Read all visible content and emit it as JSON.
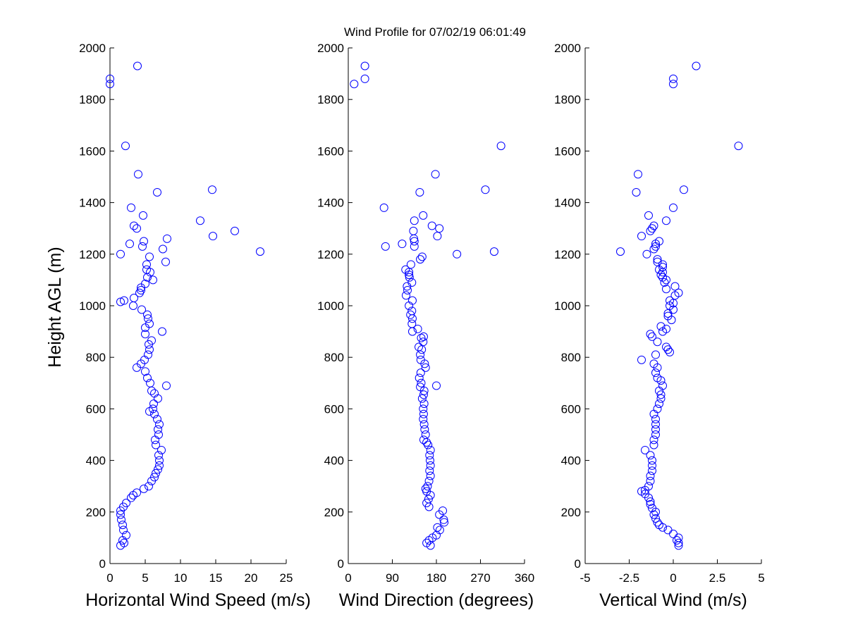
{
  "chart_data": {
    "type": "scatter",
    "title": "Wind Profile for  07/02/19 06:01:49",
    "ylabel": "Height AGL (m)",
    "ylim": [
      0,
      2000
    ],
    "yticks": [
      "0",
      "200",
      "400",
      "600",
      "800",
      "1000",
      "1200",
      "1400",
      "1600",
      "1800",
      "2000"
    ],
    "marker": "open-circle",
    "marker_color": "#0000ff",
    "panels": [
      {
        "name": "speed",
        "xlabel": "Horizontal Wind Speed (m/s)",
        "xlim": [
          0,
          25
        ],
        "xticks": [
          "0",
          "5",
          "10",
          "15",
          "20",
          "25"
        ],
        "points": [
          [
            1.5,
            70
          ],
          [
            2.0,
            80
          ],
          [
            1.8,
            90
          ],
          [
            2.3,
            110
          ],
          [
            1.9,
            130
          ],
          [
            1.8,
            150
          ],
          [
            1.6,
            170
          ],
          [
            1.5,
            190
          ],
          [
            1.5,
            205
          ],
          [
            1.9,
            220
          ],
          [
            2.3,
            235
          ],
          [
            3.0,
            255
          ],
          [
            3.3,
            265
          ],
          [
            3.8,
            275
          ],
          [
            4.8,
            290
          ],
          [
            5.5,
            300
          ],
          [
            5.9,
            320
          ],
          [
            6.3,
            335
          ],
          [
            6.5,
            350
          ],
          [
            6.8,
            365
          ],
          [
            7.0,
            380
          ],
          [
            7.0,
            400
          ],
          [
            6.9,
            420
          ],
          [
            7.3,
            440
          ],
          [
            6.5,
            460
          ],
          [
            6.4,
            480
          ],
          [
            6.9,
            500
          ],
          [
            6.8,
            520
          ],
          [
            7.0,
            540
          ],
          [
            6.7,
            560
          ],
          [
            6.3,
            580
          ],
          [
            5.6,
            590
          ],
          [
            6.1,
            600
          ],
          [
            6.2,
            620
          ],
          [
            6.8,
            640
          ],
          [
            6.3,
            660
          ],
          [
            5.9,
            670
          ],
          [
            8.0,
            690
          ],
          [
            5.7,
            700
          ],
          [
            5.3,
            720
          ],
          [
            5.0,
            745
          ],
          [
            3.8,
            760
          ],
          [
            4.4,
            775
          ],
          [
            4.9,
            790
          ],
          [
            5.4,
            810
          ],
          [
            5.6,
            830
          ],
          [
            5.5,
            850
          ],
          [
            5.9,
            865
          ],
          [
            5.0,
            890
          ],
          [
            7.4,
            900
          ],
          [
            5.0,
            915
          ],
          [
            5.6,
            930
          ],
          [
            5.4,
            950
          ],
          [
            5.3,
            965
          ],
          [
            4.5,
            985
          ],
          [
            3.3,
            1000
          ],
          [
            1.5,
            1015
          ],
          [
            2.0,
            1020
          ],
          [
            3.4,
            1030
          ],
          [
            4.2,
            1050
          ],
          [
            4.4,
            1060
          ],
          [
            4.4,
            1070
          ],
          [
            5.0,
            1085
          ],
          [
            6.1,
            1100
          ],
          [
            5.3,
            1110
          ],
          [
            5.7,
            1130
          ],
          [
            5.2,
            1140
          ],
          [
            5.2,
            1160
          ],
          [
            7.9,
            1170
          ],
          [
            5.6,
            1190
          ],
          [
            1.5,
            1200
          ],
          [
            7.5,
            1220
          ],
          [
            4.6,
            1230
          ],
          [
            2.8,
            1240
          ],
          [
            4.8,
            1250
          ],
          [
            8.1,
            1260
          ],
          [
            17.7,
            1290
          ],
          [
            3.8,
            1300
          ],
          [
            3.4,
            1310
          ],
          [
            12.8,
            1330
          ],
          [
            4.7,
            1350
          ],
          [
            3.0,
            1380
          ],
          [
            6.7,
            1440
          ],
          [
            14.5,
            1450
          ],
          [
            4.0,
            1510
          ],
          [
            2.2,
            1620
          ],
          [
            0.0,
            1860
          ],
          [
            0.0,
            1880
          ],
          [
            3.9,
            1930
          ],
          [
            14.6,
            1270
          ],
          [
            21.3,
            1210
          ]
        ]
      },
      {
        "name": "direction",
        "xlabel": "Wind Direction (degrees)",
        "xlim": [
          0,
          360
        ],
        "xticks": [
          "0",
          "90",
          "180",
          "270",
          "360"
        ],
        "points": [
          [
            168,
            70
          ],
          [
            160,
            80
          ],
          [
            165,
            90
          ],
          [
            172,
            100
          ],
          [
            180,
            110
          ],
          [
            187,
            130
          ],
          [
            182,
            140
          ],
          [
            196,
            160
          ],
          [
            195,
            170
          ],
          [
            186,
            190
          ],
          [
            193,
            205
          ],
          [
            165,
            220
          ],
          [
            160,
            235
          ],
          [
            164,
            250
          ],
          [
            168,
            265
          ],
          [
            160,
            280
          ],
          [
            158,
            290
          ],
          [
            162,
            300
          ],
          [
            165,
            320
          ],
          [
            168,
            340
          ],
          [
            166,
            360
          ],
          [
            168,
            380
          ],
          [
            167,
            400
          ],
          [
            166,
            420
          ],
          [
            168,
            440
          ],
          [
            163,
            460
          ],
          [
            160,
            470
          ],
          [
            154,
            480
          ],
          [
            158,
            500
          ],
          [
            156,
            520
          ],
          [
            155,
            540
          ],
          [
            153,
            560
          ],
          [
            154,
            580
          ],
          [
            153,
            600
          ],
          [
            155,
            620
          ],
          [
            151,
            640
          ],
          [
            154,
            655
          ],
          [
            155,
            670
          ],
          [
            147,
            685
          ],
          [
            180,
            690
          ],
          [
            149,
            700
          ],
          [
            145,
            720
          ],
          [
            148,
            740
          ],
          [
            158,
            760
          ],
          [
            156,
            775
          ],
          [
            148,
            790
          ],
          [
            147,
            810
          ],
          [
            150,
            830
          ],
          [
            144,
            840
          ],
          [
            153,
            860
          ],
          [
            149,
            875
          ],
          [
            154,
            880
          ],
          [
            131,
            900
          ],
          [
            142,
            910
          ],
          [
            130,
            930
          ],
          [
            131,
            950
          ],
          [
            127,
            965
          ],
          [
            130,
            980
          ],
          [
            124,
            1000
          ],
          [
            131,
            1020
          ],
          [
            118,
            1040
          ],
          [
            121,
            1060
          ],
          [
            120,
            1075
          ],
          [
            130,
            1090
          ],
          [
            125,
            1110
          ],
          [
            124,
            1120
          ],
          [
            124,
            1130
          ],
          [
            117,
            1140
          ],
          [
            128,
            1160
          ],
          [
            147,
            1180
          ],
          [
            151,
            1190
          ],
          [
            222,
            1200
          ],
          [
            298,
            1210
          ],
          [
            135,
            1230
          ],
          [
            76,
            1230
          ],
          [
            110,
            1240
          ],
          [
            135,
            1250
          ],
          [
            134,
            1260
          ],
          [
            182,
            1270
          ],
          [
            133,
            1290
          ],
          [
            186,
            1300
          ],
          [
            171,
            1310
          ],
          [
            135,
            1330
          ],
          [
            153,
            1350
          ],
          [
            73,
            1380
          ],
          [
            146,
            1440
          ],
          [
            280,
            1450
          ],
          [
            178,
            1510
          ],
          [
            312,
            1620
          ],
          [
            12,
            1860
          ],
          [
            34,
            1880
          ],
          [
            34,
            1930
          ]
        ]
      },
      {
        "name": "vertical",
        "xlabel": "Vertical Wind (m/s)",
        "xlim": [
          -5,
          5
        ],
        "xticks": [
          "-5",
          "-2.5",
          "0",
          "2.5",
          "5"
        ],
        "points": [
          [
            0.3,
            70
          ],
          [
            0.3,
            80
          ],
          [
            0.2,
            90
          ],
          [
            0.3,
            100
          ],
          [
            0.0,
            115
          ],
          [
            -0.3,
            130
          ],
          [
            -0.6,
            140
          ],
          [
            -0.8,
            150
          ],
          [
            -0.9,
            160
          ],
          [
            -1.0,
            175
          ],
          [
            -1.1,
            190
          ],
          [
            -1.0,
            200
          ],
          [
            -1.2,
            215
          ],
          [
            -1.3,
            230
          ],
          [
            -1.3,
            240
          ],
          [
            -1.4,
            255
          ],
          [
            -1.6,
            270
          ],
          [
            -1.8,
            280
          ],
          [
            -1.6,
            285
          ],
          [
            -1.4,
            300
          ],
          [
            -1.3,
            320
          ],
          [
            -1.3,
            340
          ],
          [
            -1.2,
            360
          ],
          [
            -1.2,
            380
          ],
          [
            -1.2,
            400
          ],
          [
            -1.3,
            420
          ],
          [
            -1.6,
            440
          ],
          [
            -1.1,
            460
          ],
          [
            -1.1,
            480
          ],
          [
            -1.0,
            500
          ],
          [
            -1.0,
            520
          ],
          [
            -1.0,
            540
          ],
          [
            -1.0,
            560
          ],
          [
            -1.1,
            580
          ],
          [
            -0.9,
            600
          ],
          [
            -0.8,
            620
          ],
          [
            -0.7,
            640
          ],
          [
            -0.7,
            655
          ],
          [
            -0.8,
            670
          ],
          [
            -0.6,
            690
          ],
          [
            -0.7,
            710
          ],
          [
            -0.9,
            720
          ],
          [
            -1.0,
            740
          ],
          [
            -0.9,
            760
          ],
          [
            -1.1,
            775
          ],
          [
            -1.8,
            790
          ],
          [
            -1.0,
            810
          ],
          [
            -0.2,
            820
          ],
          [
            -0.3,
            830
          ],
          [
            -0.4,
            840
          ],
          [
            -0.9,
            860
          ],
          [
            -1.2,
            880
          ],
          [
            -1.3,
            890
          ],
          [
            -0.6,
            900
          ],
          [
            -0.4,
            910
          ],
          [
            -0.7,
            920
          ],
          [
            -0.1,
            945
          ],
          [
            -0.3,
            960
          ],
          [
            -0.3,
            970
          ],
          [
            0.0,
            985
          ],
          [
            -0.2,
            1000
          ],
          [
            0.0,
            1010
          ],
          [
            -0.2,
            1020
          ],
          [
            0.1,
            1040
          ],
          [
            0.3,
            1050
          ],
          [
            -0.4,
            1065
          ],
          [
            0.1,
            1075
          ],
          [
            -0.5,
            1090
          ],
          [
            -0.4,
            1100
          ],
          [
            -0.6,
            1110
          ],
          [
            -0.7,
            1120
          ],
          [
            -0.6,
            1130
          ],
          [
            -0.8,
            1140
          ],
          [
            -0.6,
            1150
          ],
          [
            -0.6,
            1160
          ],
          [
            -0.9,
            1170
          ],
          [
            -0.9,
            1180
          ],
          [
            -1.5,
            1200
          ],
          [
            -3.0,
            1210
          ],
          [
            -1.1,
            1220
          ],
          [
            -1.0,
            1230
          ],
          [
            -1.0,
            1240
          ],
          [
            -0.8,
            1250
          ],
          [
            -1.8,
            1270
          ],
          [
            -1.3,
            1290
          ],
          [
            -1.2,
            1300
          ],
          [
            -1.1,
            1310
          ],
          [
            -0.4,
            1330
          ],
          [
            -1.4,
            1350
          ],
          [
            0.0,
            1380
          ],
          [
            -2.1,
            1440
          ],
          [
            0.6,
            1450
          ],
          [
            -2.0,
            1510
          ],
          [
            3.7,
            1620
          ],
          [
            0.0,
            1860
          ],
          [
            0.0,
            1880
          ],
          [
            1.3,
            1930
          ]
        ]
      }
    ]
  }
}
